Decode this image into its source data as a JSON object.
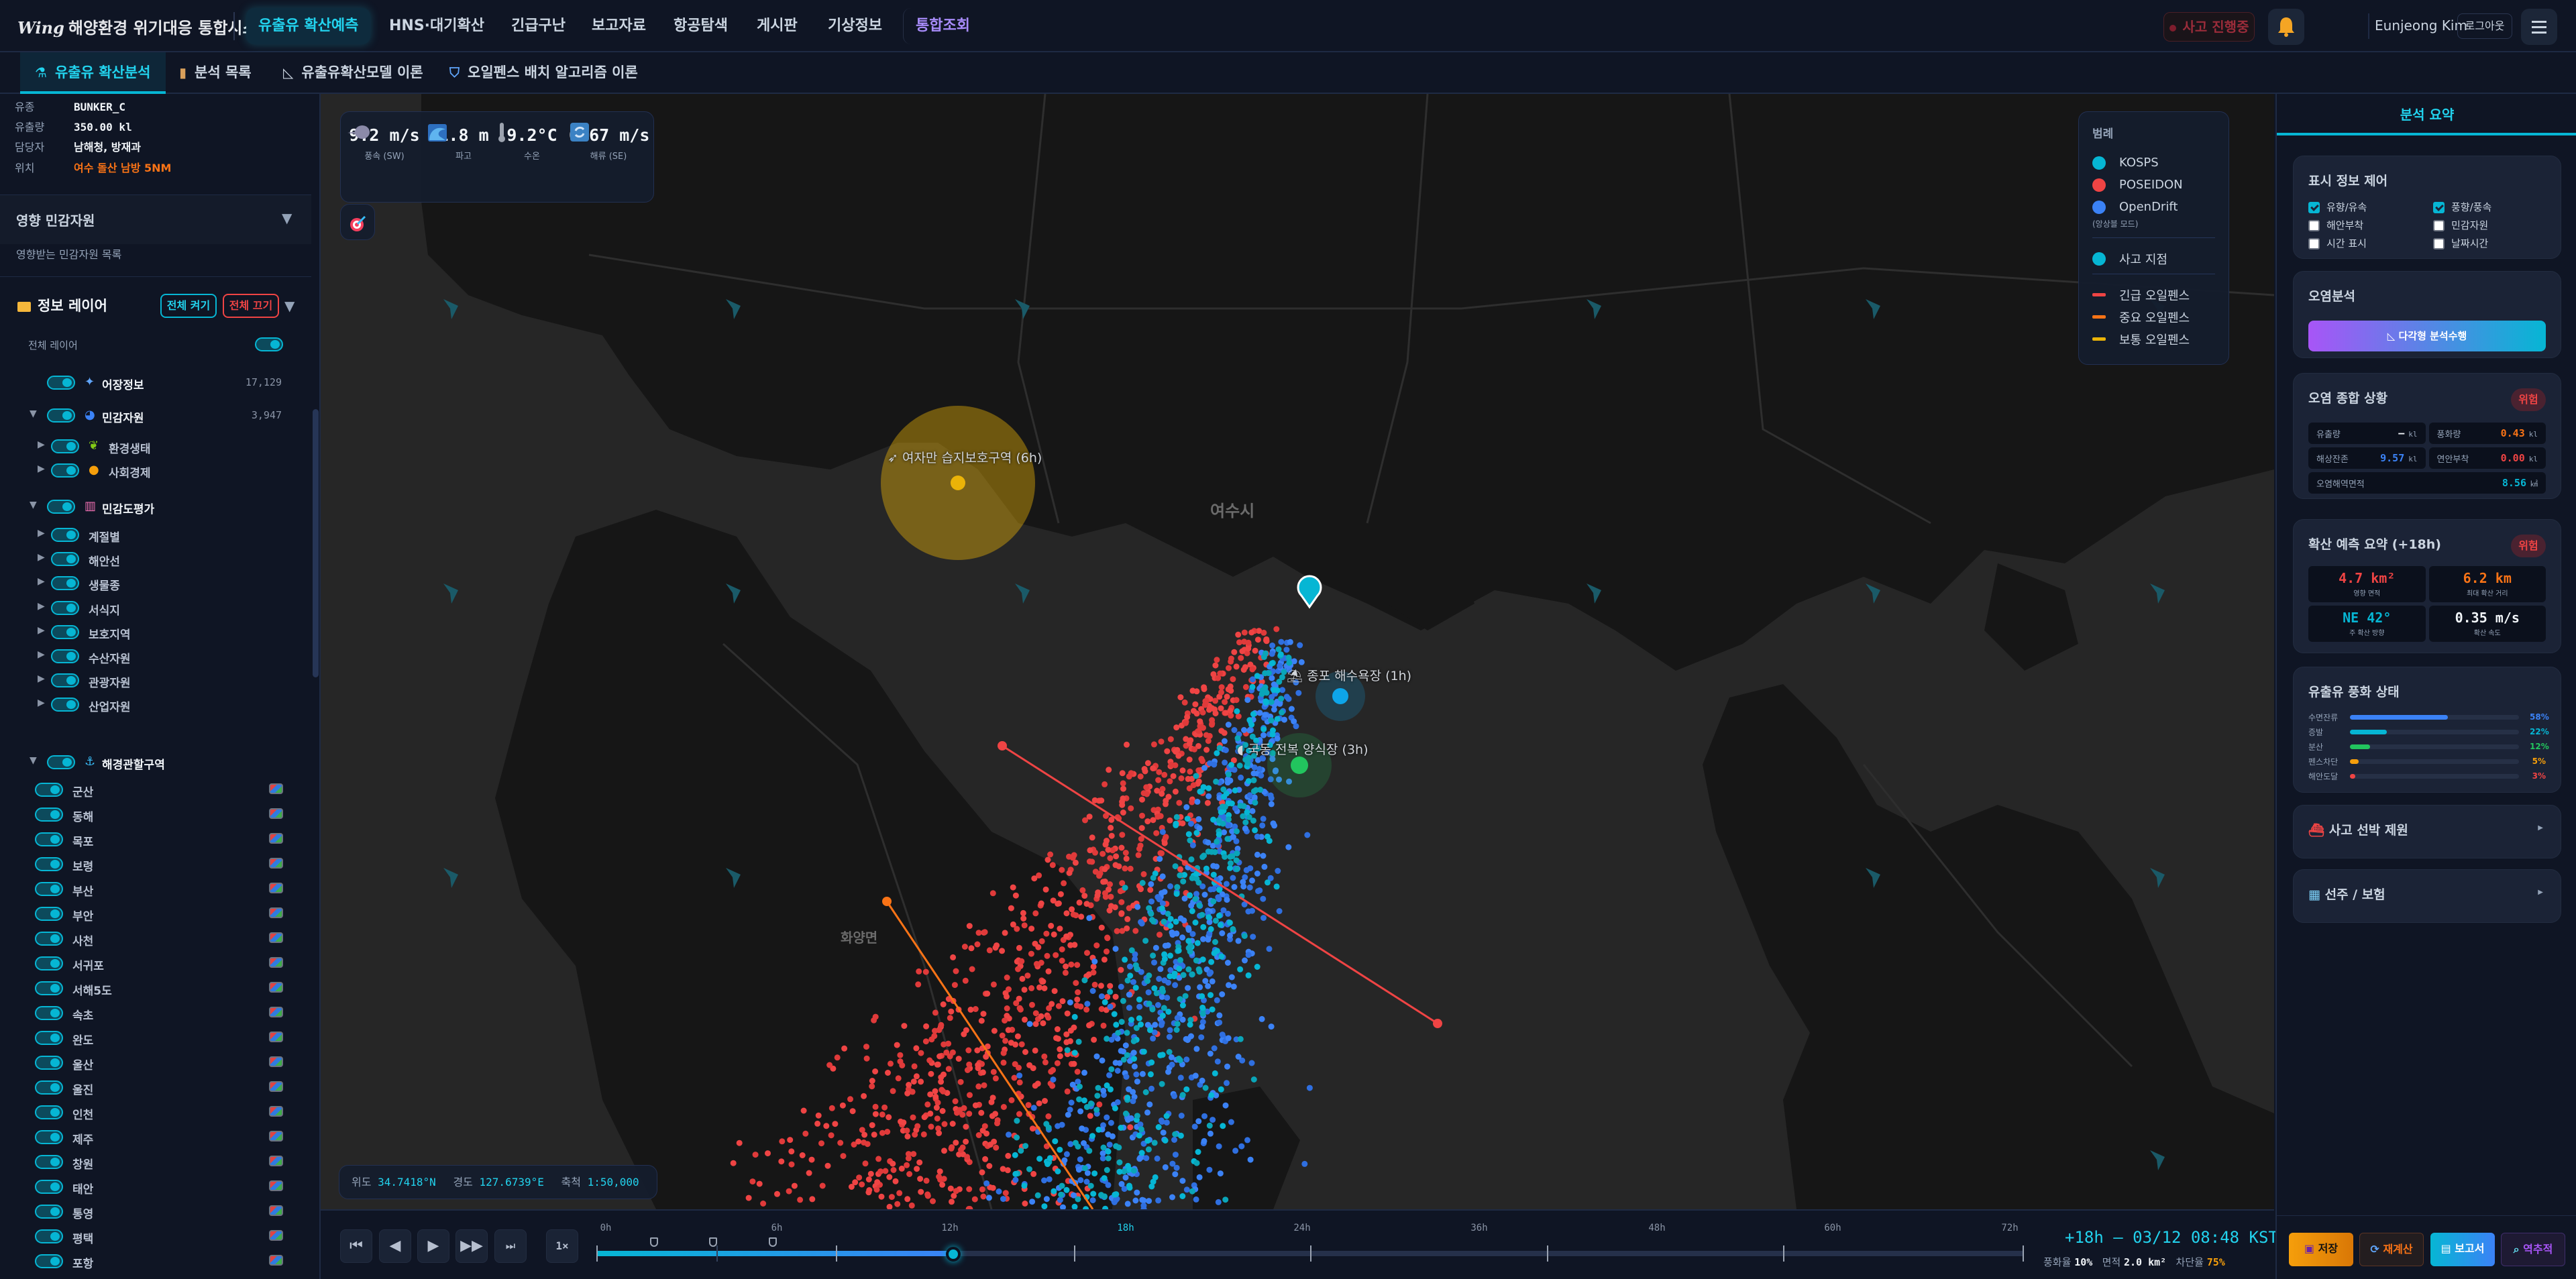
{
  "app": {
    "logo_mark": "Wing",
    "title": "해양환경 위기대응 통합시스템"
  },
  "nav": {
    "items": [
      {
        "label": "유출유 확산예측",
        "active": true
      },
      {
        "label": "HNS·대기확산"
      },
      {
        "label": "긴급구난"
      },
      {
        "label": "보고자료"
      },
      {
        "label": "항공탐색"
      },
      {
        "label": "게시판"
      },
      {
        "label": "기상정보"
      },
      {
        "label": "통합조회"
      }
    ],
    "incident_status": "사고 진행중",
    "user_name": "Eunjeong Kim",
    "logout_label": "로그아웃",
    "icons": {
      "notifications": "bell-icon",
      "menu": "hamburger-menu-icon"
    }
  },
  "subtabs": [
    {
      "label": "유출유 확산분석",
      "icon": "microscope-icon",
      "active": true
    },
    {
      "label": "분석 목록",
      "icon": "clipboard-icon"
    },
    {
      "label": "유출유확산모델 이론",
      "icon": "triangle-ruler-icon"
    },
    {
      "label": "오일펜스 배치 알고리즘 이론",
      "icon": "shield-icon"
    }
  ],
  "sidebar": {
    "incident_info": [
      {
        "key": "유종",
        "value": "BUNKER_C"
      },
      {
        "key": "유출량",
        "value": "350.00 kl"
      },
      {
        "key": "담당자",
        "value": "남해청, 방재과"
      },
      {
        "key": "위치",
        "value": "여수 돌산 남방 5NM",
        "color": "#f97316"
      }
    ],
    "sensitive": {
      "title": "영향 민감자원",
      "subtitle": "영향받는 민감자원 목록"
    },
    "layers": {
      "title": "정보 레이어",
      "all_on": "전체 켜기",
      "all_off": "전체 끄기",
      "all_layers_label": "전체 레이어",
      "all_layers_on": true,
      "groups": [
        {
          "label": "어장정보",
          "icon": "fish-icon",
          "count": "17,129",
          "on": true
        },
        {
          "label": "민감자원",
          "icon": "wave-icon",
          "count": "3,947",
          "on": true,
          "expanded": true,
          "children": [
            {
              "label": "환경생태",
              "icon": "herb-icon",
              "on": true
            },
            {
              "label": "사회경제",
              "icon": "money-bag-icon",
              "on": true
            }
          ]
        },
        {
          "label": "민감도평가",
          "icon": "bar-chart-icon",
          "on": true,
          "expanded": true,
          "children": [
            {
              "label": "계절별",
              "on": true
            },
            {
              "label": "해안선",
              "on": true
            },
            {
              "label": "생물종",
              "on": true
            },
            {
              "label": "서식지",
              "on": true
            },
            {
              "label": "보호지역",
              "on": true
            },
            {
              "label": "수산자원",
              "on": true
            },
            {
              "label": "관광자원",
              "on": true
            },
            {
              "label": "산업자원",
              "on": true
            }
          ]
        },
        {
          "label": "해경관할구역",
          "icon": "anchor-icon",
          "on": true,
          "expanded": true,
          "regions": [
            "군산",
            "동해",
            "목포",
            "보령",
            "부산",
            "부안",
            "사천",
            "서귀포",
            "서해5도",
            "속초",
            "완도",
            "울산",
            "울진",
            "인천",
            "제주",
            "창원",
            "태안",
            "통영",
            "평택",
            "포항"
          ]
        }
      ]
    }
  },
  "map": {
    "weather": [
      {
        "value": "9.2 m/s",
        "label": "풍속 (SW)",
        "icon": "wind-icon"
      },
      {
        "value": "1.8 m",
        "label": "파고",
        "icon": "wave-icon"
      },
      {
        "value": "9.2°C",
        "label": "수온",
        "icon": "thermometer-icon"
      },
      {
        "value": "0.67 m/s",
        "label": "해류 (SE)",
        "icon": "current-cycle-icon"
      }
    ],
    "legend": {
      "title": "범례",
      "models": [
        {
          "label": "KOSPS",
          "color": "#06b6d4"
        },
        {
          "label": "POSEIDON",
          "color": "#ef4444"
        },
        {
          "label": "OpenDrift",
          "color": "#3b82f6"
        }
      ],
      "mode_note": "(앙상블 모드)",
      "incident": {
        "label": "사고 지점",
        "color": "#06b6d4"
      },
      "booms": [
        {
          "label": "긴급 오일펜스",
          "color": "#ef4444"
        },
        {
          "label": "중요 오일펜스",
          "color": "#f97316"
        },
        {
          "label": "보통 오일펜스",
          "color": "#eab308"
        }
      ]
    },
    "place_names": [
      "여수시",
      "화양면"
    ],
    "resources": [
      {
        "label": "여자만 습지보호구역 (6h)",
        "icon": "bird-icon",
        "color": "#eab308"
      },
      {
        "label": "종포 해수욕장 (1h)",
        "icon": "beach-icon",
        "color": "#0ea5e9"
      },
      {
        "label": "국동 전복 양식장 (3h)",
        "icon": "shell-icon",
        "color": "#22c55e"
      }
    ],
    "coords": {
      "lat_label": "위도",
      "lat": "34.7418°N",
      "lon_label": "경도",
      "lon": "127.6739°E",
      "scale_label": "축척",
      "scale": "1:50,000"
    }
  },
  "timeline": {
    "controls": [
      "first-icon",
      "prev-icon",
      "play-icon",
      "next-icon",
      "last-icon"
    ],
    "speed": "1×",
    "labels": [
      "0h",
      "6h",
      "12h",
      "18h",
      "24h",
      "36h",
      "48h",
      "60h",
      "72h"
    ],
    "current_label": "18h",
    "progress_fraction": 0.25,
    "readout": "+18h — 03/12 08:48 KST",
    "stats": {
      "weathering_label": "풍화율",
      "weathering": "10%",
      "area_label": "면적",
      "area": "2.0 km²",
      "block_label": "차단율",
      "block": "75%"
    }
  },
  "right": {
    "tab": "분석 요약",
    "display_control": {
      "title": "표시 정보 제어",
      "options": [
        {
          "label": "유향/유속",
          "checked": true
        },
        {
          "label": "풍향/풍속",
          "checked": true
        },
        {
          "label": "해안부착",
          "checked": false
        },
        {
          "label": "민감자원",
          "checked": false
        },
        {
          "label": "시간 표시",
          "checked": false
        },
        {
          "label": "날짜시간",
          "checked": false
        }
      ]
    },
    "pollution_analysis": {
      "title": "오염분석",
      "button": "다각형 분석수행"
    },
    "overall": {
      "title": "오염 종합 상황",
      "badge": "위험",
      "metrics": [
        {
          "label": "유출량",
          "value": "—",
          "unit": "kl",
          "color": "#f1f5f9"
        },
        {
          "label": "풍화량",
          "value": "0.43",
          "unit": "kl",
          "color": "#f97316"
        },
        {
          "label": "해상잔존",
          "value": "9.57",
          "unit": "kl",
          "color": "#3b82f6"
        },
        {
          "label": "연안부착",
          "value": "0.00",
          "unit": "kl",
          "color": "#ef4444"
        },
        {
          "label": "오염해역면적",
          "value": "8.56",
          "unit": "㎢",
          "color": "#06b6d4"
        }
      ]
    },
    "forecast": {
      "title": "확산 예측 요약 (+18h)",
      "badge": "위험",
      "cells": [
        {
          "value": "4.7 km²",
          "label": "영향 면적",
          "color": "#ef4444"
        },
        {
          "value": "6.2 km",
          "label": "최대 확산 거리",
          "color": "#f97316"
        },
        {
          "value": "NE 42°",
          "label": "주 확산 방향",
          "color": "#06b6d4"
        },
        {
          "value": "0.35 m/s",
          "label": "확산 속도",
          "color": "#f1f5f9"
        }
      ]
    },
    "weathering": {
      "title": "유출유 풍화 상태",
      "rows": [
        {
          "label": "수면잔류",
          "percent": 58,
          "text": "58%",
          "color": "#3b82f6"
        },
        {
          "label": "증발",
          "percent": 22,
          "text": "22%",
          "color": "#06b6d4"
        },
        {
          "label": "분산",
          "percent": 12,
          "text": "12%",
          "color": "#22c55e"
        },
        {
          "label": "펜스차단",
          "percent": 5,
          "text": "5%",
          "color": "#f59e0b"
        },
        {
          "label": "해안도달",
          "percent": 3,
          "text": "3%",
          "color": "#ef4444"
        }
      ]
    },
    "vessel": {
      "title": "사고 선박 제원",
      "icon": "ship-icon"
    },
    "owner": {
      "title": "선주 / 보험",
      "icon": "building-icon"
    },
    "actions": [
      {
        "label": "저장",
        "icon": "floppy-icon"
      },
      {
        "label": "재계산",
        "icon": "refresh-icon"
      },
      {
        "label": "보고서",
        "icon": "document-icon"
      },
      {
        "label": "역추적",
        "icon": "magnifier-icon"
      }
    ]
  }
}
